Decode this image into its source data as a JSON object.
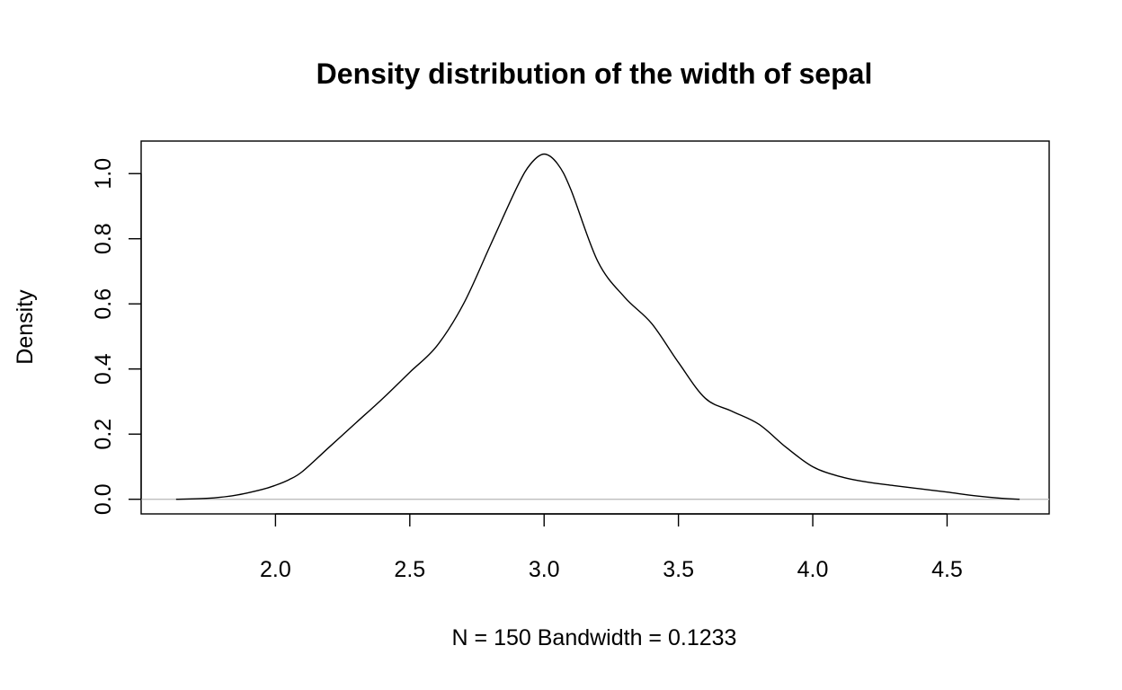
{
  "chart_data": {
    "type": "line",
    "title": "Density distribution of the width of sepal",
    "xlabel": "N = 150   Bandwidth = 0.1233",
    "ylabel": "Density",
    "xlim": [
      1.5,
      4.88
    ],
    "ylim": [
      -0.045,
      1.1
    ],
    "x_ticks": [
      2.0,
      2.5,
      3.0,
      3.5,
      4.0,
      4.5
    ],
    "x_tick_labels": [
      "2.0",
      "2.5",
      "3.0",
      "3.5",
      "4.0",
      "4.5"
    ],
    "y_ticks": [
      0.0,
      0.2,
      0.4,
      0.6,
      0.8,
      1.0
    ],
    "y_tick_labels": [
      "0.0",
      "0.2",
      "0.4",
      "0.6",
      "0.8",
      "1.0"
    ],
    "zero_line": true,
    "grid": false,
    "series": [
      {
        "x": [
          1.63,
          1.75,
          1.85,
          1.95,
          2.0,
          2.05,
          2.1,
          2.2,
          2.3,
          2.4,
          2.5,
          2.6,
          2.7,
          2.8,
          2.9,
          2.95,
          3.0,
          3.05,
          3.1,
          3.2,
          3.3,
          3.4,
          3.5,
          3.6,
          3.7,
          3.8,
          3.9,
          4.0,
          4.1,
          4.2,
          4.3,
          4.4,
          4.5,
          4.6,
          4.7,
          4.77
        ],
        "y": [
          0.0,
          0.003,
          0.012,
          0.03,
          0.043,
          0.06,
          0.085,
          0.16,
          0.235,
          0.31,
          0.39,
          0.47,
          0.6,
          0.78,
          0.96,
          1.03,
          1.06,
          1.03,
          0.95,
          0.73,
          0.62,
          0.54,
          0.42,
          0.31,
          0.27,
          0.23,
          0.16,
          0.1,
          0.07,
          0.053,
          0.042,
          0.032,
          0.022,
          0.011,
          0.003,
          0.0
        ]
      }
    ]
  }
}
